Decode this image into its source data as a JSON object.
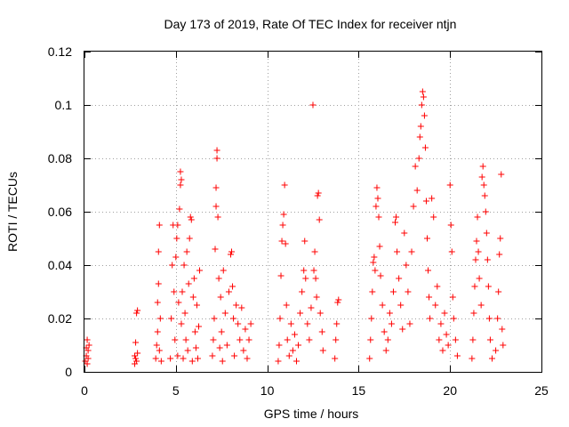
{
  "chart_data": {
    "type": "scatter",
    "title": "Day 173 of 2019, Rate Of TEC Index for receiver ntjn",
    "xlabel": "GPS time / hours",
    "ylabel": "ROTI / TECUs",
    "xlim": [
      0,
      25
    ],
    "ylim": [
      0,
      0.12
    ],
    "xticks": [
      0,
      5,
      10,
      15,
      20,
      25
    ],
    "xtick_labels": [
      "0",
      "5",
      "10",
      "15",
      "20",
      "25"
    ],
    "yticks": [
      0,
      0.02,
      0.04,
      0.06,
      0.08,
      0.1,
      0.12
    ],
    "ytick_labels": [
      "0",
      "0.02",
      "0.04",
      "0.06",
      "0.08",
      "0.1",
      "0.12"
    ],
    "grid": true,
    "marker": "+",
    "color": "#ff0000",
    "series": [
      {
        "name": "ROTI",
        "points": [
          [
            0.05,
            0.004
          ],
          [
            0.1,
            0.006
          ],
          [
            0.1,
            0.009
          ],
          [
            0.15,
            0.003
          ],
          [
            0.15,
            0.012
          ],
          [
            0.2,
            0.008
          ],
          [
            0.2,
            0.005
          ],
          [
            0.25,
            0.01
          ],
          [
            2.75,
            0.003
          ],
          [
            2.75,
            0.006
          ],
          [
            2.8,
            0.011
          ],
          [
            2.8,
            0.005
          ],
          [
            2.85,
            0.004
          ],
          [
            2.85,
            0.022
          ],
          [
            2.9,
            0.023
          ],
          [
            2.9,
            0.007
          ],
          [
            3.9,
            0.005
          ],
          [
            3.95,
            0.01
          ],
          [
            4.0,
            0.015
          ],
          [
            4.0,
            0.026
          ],
          [
            4.05,
            0.033
          ],
          [
            4.05,
            0.045
          ],
          [
            4.1,
            0.055
          ],
          [
            4.1,
            0.008
          ],
          [
            4.15,
            0.02
          ],
          [
            4.2,
            0.004
          ],
          [
            4.7,
            0.005
          ],
          [
            4.75,
            0.02
          ],
          [
            4.8,
            0.04
          ],
          [
            4.85,
            0.055
          ],
          [
            4.9,
            0.03
          ],
          [
            4.95,
            0.012
          ],
          [
            5.0,
            0.043
          ],
          [
            5.05,
            0.05
          ],
          [
            5.1,
            0.055
          ],
          [
            5.1,
            0.006
          ],
          [
            5.15,
            0.026
          ],
          [
            5.2,
            0.061
          ],
          [
            5.25,
            0.07
          ],
          [
            5.25,
            0.075
          ],
          [
            5.3,
            0.072
          ],
          [
            5.3,
            0.018
          ],
          [
            5.35,
            0.03
          ],
          [
            5.4,
            0.005
          ],
          [
            5.45,
            0.04
          ],
          [
            5.5,
            0.022
          ],
          [
            5.55,
            0.012
          ],
          [
            5.6,
            0.045
          ],
          [
            5.65,
            0.008
          ],
          [
            5.7,
            0.033
          ],
          [
            5.75,
            0.05
          ],
          [
            5.8,
            0.058
          ],
          [
            5.85,
            0.057
          ],
          [
            5.9,
            0.004
          ],
          [
            5.95,
            0.028
          ],
          [
            6.0,
            0.035
          ],
          [
            6.05,
            0.015
          ],
          [
            6.1,
            0.009
          ],
          [
            6.15,
            0.025
          ],
          [
            6.2,
            0.005
          ],
          [
            6.25,
            0.017
          ],
          [
            6.3,
            0.038
          ],
          [
            7.0,
            0.006
          ],
          [
            7.05,
            0.012
          ],
          [
            7.1,
            0.02
          ],
          [
            7.15,
            0.046
          ],
          [
            7.2,
            0.062
          ],
          [
            7.2,
            0.069
          ],
          [
            7.25,
            0.083
          ],
          [
            7.25,
            0.08
          ],
          [
            7.3,
            0.058
          ],
          [
            7.35,
            0.035
          ],
          [
            7.4,
            0.009
          ],
          [
            7.45,
            0.028
          ],
          [
            7.5,
            0.015
          ],
          [
            7.55,
            0.004
          ],
          [
            7.6,
            0.038
          ],
          [
            7.7,
            0.022
          ],
          [
            7.8,
            0.01
          ],
          [
            7.9,
            0.03
          ],
          [
            8.0,
            0.044
          ],
          [
            8.05,
            0.045
          ],
          [
            8.1,
            0.032
          ],
          [
            8.15,
            0.02
          ],
          [
            8.2,
            0.006
          ],
          [
            8.3,
            0.025
          ],
          [
            8.4,
            0.018
          ],
          [
            8.5,
            0.012
          ],
          [
            8.6,
            0.024
          ],
          [
            8.7,
            0.008
          ],
          [
            8.8,
            0.016
          ],
          [
            8.9,
            0.005
          ],
          [
            9.0,
            0.012
          ],
          [
            9.1,
            0.018
          ],
          [
            10.6,
            0.004
          ],
          [
            10.65,
            0.01
          ],
          [
            10.7,
            0.02
          ],
          [
            10.75,
            0.036
          ],
          [
            10.8,
            0.049
          ],
          [
            10.85,
            0.055
          ],
          [
            10.9,
            0.059
          ],
          [
            10.95,
            0.07
          ],
          [
            11.0,
            0.048
          ],
          [
            11.05,
            0.025
          ],
          [
            11.1,
            0.012
          ],
          [
            11.2,
            0.006
          ],
          [
            11.3,
            0.018
          ],
          [
            11.4,
            0.008
          ],
          [
            11.5,
            0.014
          ],
          [
            11.6,
            0.004
          ],
          [
            11.7,
            0.01
          ],
          [
            11.8,
            0.022
          ],
          [
            11.9,
            0.03
          ],
          [
            12.0,
            0.038
          ],
          [
            12.05,
            0.049
          ],
          [
            12.1,
            0.035
          ],
          [
            12.2,
            0.018
          ],
          [
            12.3,
            0.012
          ],
          [
            12.4,
            0.024
          ],
          [
            12.5,
            0.1
          ],
          [
            12.55,
            0.038
          ],
          [
            12.6,
            0.045
          ],
          [
            12.65,
            0.035
          ],
          [
            12.7,
            0.028
          ],
          [
            12.75,
            0.066
          ],
          [
            12.8,
            0.067
          ],
          [
            12.85,
            0.057
          ],
          [
            12.9,
            0.022
          ],
          [
            13.0,
            0.015
          ],
          [
            13.05,
            0.008
          ],
          [
            13.7,
            0.005
          ],
          [
            13.75,
            0.012
          ],
          [
            13.8,
            0.018
          ],
          [
            13.85,
            0.026
          ],
          [
            13.9,
            0.027
          ],
          [
            15.6,
            0.005
          ],
          [
            15.65,
            0.012
          ],
          [
            15.7,
            0.02
          ],
          [
            15.75,
            0.03
          ],
          [
            15.8,
            0.041
          ],
          [
            15.85,
            0.043
          ],
          [
            15.9,
            0.038
          ],
          [
            15.95,
            0.062
          ],
          [
            16.0,
            0.069
          ],
          [
            16.05,
            0.065
          ],
          [
            16.1,
            0.058
          ],
          [
            16.15,
            0.047
          ],
          [
            16.2,
            0.036
          ],
          [
            16.3,
            0.025
          ],
          [
            16.4,
            0.015
          ],
          [
            16.5,
            0.008
          ],
          [
            16.6,
            0.012
          ],
          [
            16.7,
            0.022
          ],
          [
            16.8,
            0.018
          ],
          [
            16.9,
            0.03
          ],
          [
            17.0,
            0.056
          ],
          [
            17.05,
            0.058
          ],
          [
            17.1,
            0.045
          ],
          [
            17.2,
            0.035
          ],
          [
            17.3,
            0.025
          ],
          [
            17.4,
            0.016
          ],
          [
            17.5,
            0.052
          ],
          [
            17.6,
            0.04
          ],
          [
            17.7,
            0.03
          ],
          [
            17.8,
            0.018
          ],
          [
            17.9,
            0.045
          ],
          [
            18.0,
            0.062
          ],
          [
            18.1,
            0.077
          ],
          [
            18.2,
            0.068
          ],
          [
            18.3,
            0.08
          ],
          [
            18.35,
            0.088
          ],
          [
            18.4,
            0.092
          ],
          [
            18.45,
            0.1
          ],
          [
            18.5,
            0.105
          ],
          [
            18.55,
            0.103
          ],
          [
            18.6,
            0.096
          ],
          [
            18.65,
            0.084
          ],
          [
            18.7,
            0.064
          ],
          [
            18.75,
            0.05
          ],
          [
            18.8,
            0.038
          ],
          [
            18.85,
            0.028
          ],
          [
            18.9,
            0.02
          ],
          [
            19.0,
            0.065
          ],
          [
            19.1,
            0.058
          ],
          [
            19.2,
            0.025
          ],
          [
            19.3,
            0.032
          ],
          [
            19.4,
            0.012
          ],
          [
            19.5,
            0.018
          ],
          [
            19.6,
            0.008
          ],
          [
            19.7,
            0.022
          ],
          [
            19.8,
            0.014
          ],
          [
            19.9,
            0.01
          ],
          [
            20.0,
            0.07
          ],
          [
            20.05,
            0.055
          ],
          [
            20.1,
            0.045
          ],
          [
            20.15,
            0.028
          ],
          [
            20.2,
            0.02
          ],
          [
            20.3,
            0.012
          ],
          [
            20.4,
            0.006
          ],
          [
            21.2,
            0.005
          ],
          [
            21.25,
            0.012
          ],
          [
            21.3,
            0.022
          ],
          [
            21.35,
            0.032
          ],
          [
            21.4,
            0.042
          ],
          [
            21.45,
            0.049
          ],
          [
            21.5,
            0.058
          ],
          [
            21.55,
            0.045
          ],
          [
            21.6,
            0.035
          ],
          [
            21.7,
            0.025
          ],
          [
            21.75,
            0.073
          ],
          [
            21.8,
            0.077
          ],
          [
            21.85,
            0.07
          ],
          [
            21.9,
            0.066
          ],
          [
            21.95,
            0.06
          ],
          [
            22.0,
            0.052
          ],
          [
            22.05,
            0.042
          ],
          [
            22.1,
            0.032
          ],
          [
            22.15,
            0.02
          ],
          [
            22.2,
            0.012
          ],
          [
            22.3,
            0.005
          ],
          [
            22.5,
            0.008
          ],
          [
            22.6,
            0.02
          ],
          [
            22.65,
            0.03
          ],
          [
            22.7,
            0.044
          ],
          [
            22.75,
            0.05
          ],
          [
            22.8,
            0.074
          ],
          [
            22.85,
            0.016
          ],
          [
            22.9,
            0.01
          ]
        ]
      }
    ]
  }
}
